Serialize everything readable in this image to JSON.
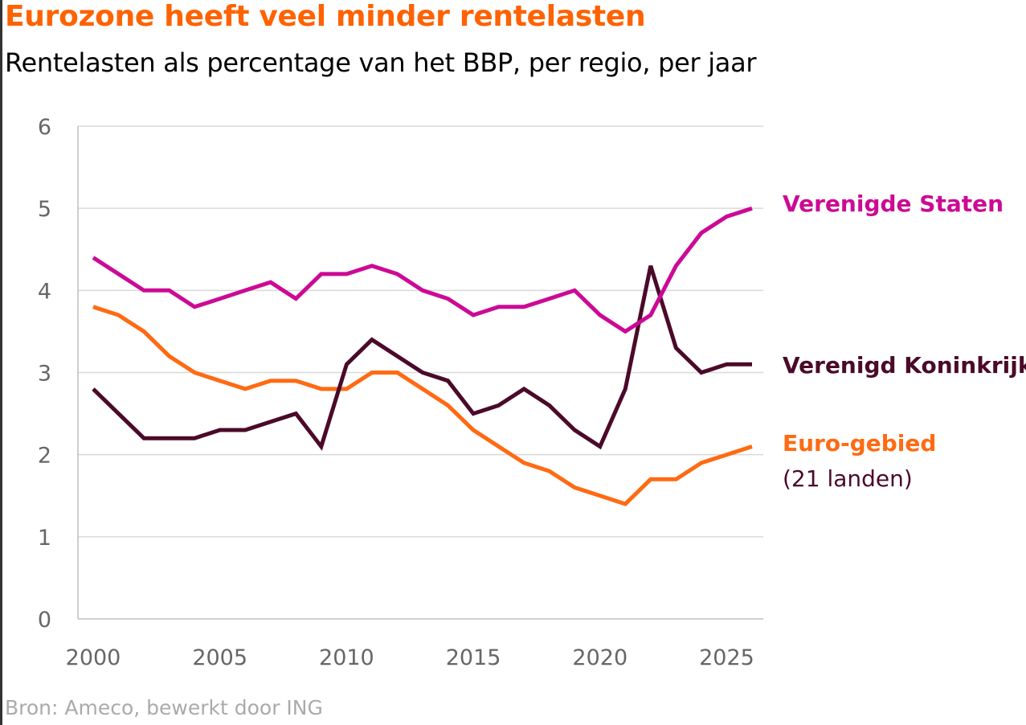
{
  "title": "Eurozone heeft veel minder rentelasten",
  "subtitle": "Rentelasten als percentage van het BBP, per regio, per jaar",
  "source": "Bron: Ameco, bewerkt door ING",
  "colors": {
    "title": "#ff6200",
    "us": "#cc0a95",
    "uk": "#4b0a2a",
    "ez": "#ff6a13",
    "grid": "#d9d9d9",
    "axis": "#bfbfbf",
    "tick": "#666666"
  },
  "chart_data": {
    "type": "line",
    "x": [
      2000,
      2001,
      2002,
      2003,
      2004,
      2005,
      2006,
      2007,
      2008,
      2009,
      2010,
      2011,
      2012,
      2013,
      2014,
      2015,
      2016,
      2017,
      2018,
      2019,
      2020,
      2021,
      2022,
      2023,
      2024,
      2025,
      2026
    ],
    "xlim": [
      2000,
      2026
    ],
    "ylim": [
      0,
      6
    ],
    "x_ticks": [
      "2000",
      "2005",
      "2010",
      "2015",
      "2020",
      "2025"
    ],
    "y_ticks": [
      "0",
      "1",
      "2",
      "3",
      "4",
      "5",
      "6"
    ],
    "grid": true,
    "series": [
      {
        "name": "Verenigde Staten",
        "color": "#cc0a95",
        "values": [
          4.4,
          4.2,
          4.0,
          4.0,
          3.8,
          3.9,
          4.0,
          4.1,
          3.9,
          4.2,
          4.2,
          4.3,
          4.2,
          4.0,
          3.9,
          3.7,
          3.8,
          3.8,
          3.9,
          4.0,
          3.7,
          3.5,
          3.7,
          4.3,
          4.7,
          4.9,
          5.0
        ]
      },
      {
        "name": "Verenigd Koninkrijk",
        "color": "#4b0a2a",
        "values": [
          2.8,
          2.5,
          2.2,
          2.2,
          2.2,
          2.3,
          2.3,
          2.4,
          2.5,
          2.1,
          3.1,
          3.4,
          3.2,
          3.0,
          2.9,
          2.5,
          2.6,
          2.8,
          2.6,
          2.3,
          2.1,
          2.8,
          4.3,
          3.3,
          3.0,
          3.1,
          3.1
        ]
      },
      {
        "name": "Euro-gebied",
        "note": "(21 landen)",
        "color": "#ff6a13",
        "values": [
          3.8,
          3.7,
          3.5,
          3.2,
          3.0,
          2.9,
          2.8,
          2.9,
          2.9,
          2.8,
          2.8,
          3.0,
          3.0,
          2.8,
          2.6,
          2.3,
          2.1,
          1.9,
          1.8,
          1.6,
          1.5,
          1.4,
          1.7,
          1.7,
          1.9,
          2.0,
          2.1
        ]
      }
    ]
  }
}
